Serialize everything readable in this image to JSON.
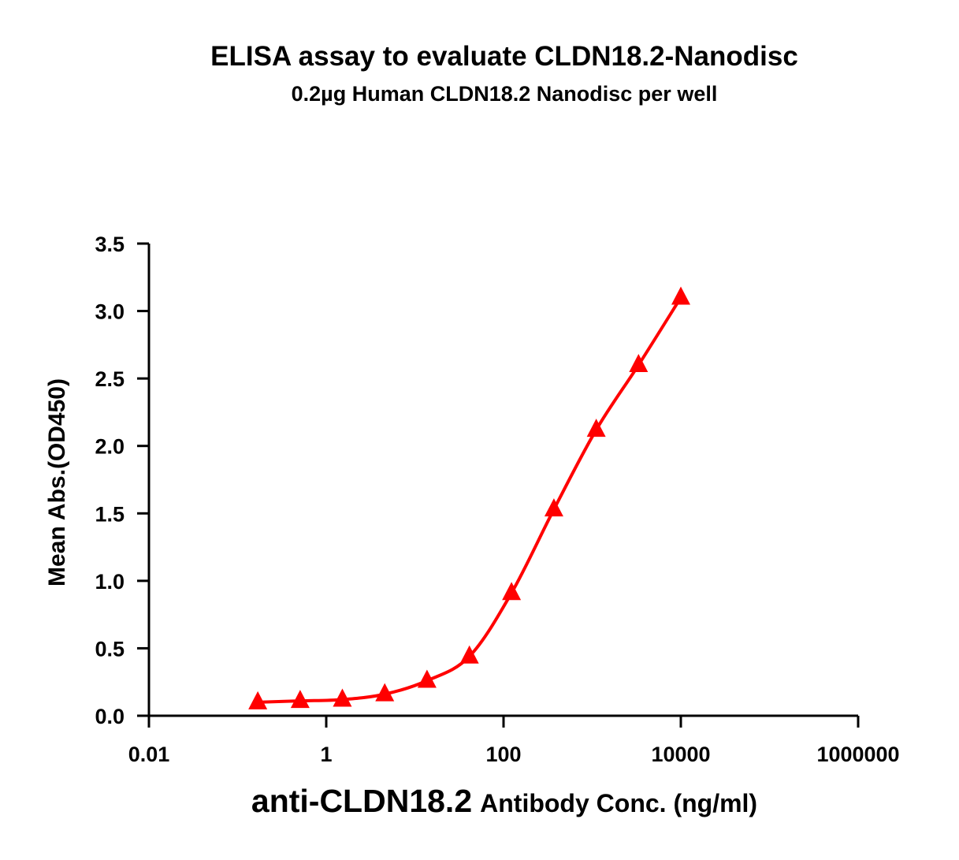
{
  "chart_data": {
    "type": "scatter",
    "title": "ELISA assay to evaluate CLDN18.2-Nanodisc",
    "subtitle": "0.2µg Human CLDN18.2 Nanodisc per well",
    "xlabel_main": "anti-CLDN18.2",
    "xlabel_rest": "Antibody Conc. (ng/ml)",
    "ylabel": "Mean Abs.(OD450)",
    "x_scale": "log",
    "xlim": [
      0.01,
      1000000
    ],
    "ylim": [
      0,
      3.5
    ],
    "x_ticks": [
      0.01,
      1,
      100,
      10000,
      1000000
    ],
    "x_tick_labels": [
      "0.01",
      "1",
      "100",
      "10000",
      "1000000"
    ],
    "y_ticks": [
      0,
      0.5,
      1,
      1.5,
      2,
      2.5,
      3,
      3.5
    ],
    "y_tick_labels": [
      "0.0",
      "0.5",
      "1.0",
      "1.5",
      "2.0",
      "2.5",
      "3.0",
      "3.5"
    ],
    "grid": false,
    "series": [
      {
        "color": "#ff0000",
        "marker": "triangle",
        "fit": "sigmoidal curve",
        "x": [
          0.169,
          0.508,
          1.52,
          4.57,
          13.7,
          41.2,
          123,
          370,
          1111,
          3333,
          10000
        ],
        "y": [
          0.1,
          0.11,
          0.12,
          0.16,
          0.26,
          0.44,
          0.91,
          1.53,
          2.12,
          2.6,
          3.1
        ]
      }
    ]
  }
}
